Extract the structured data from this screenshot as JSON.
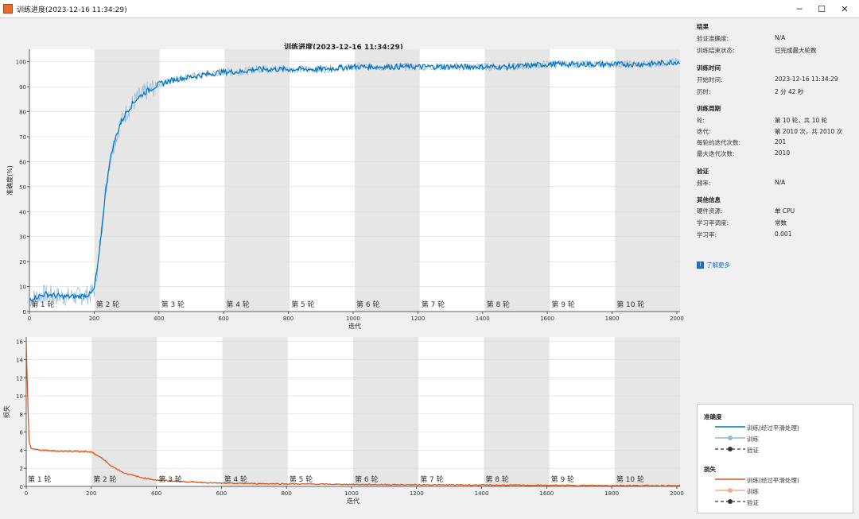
{
  "window": {
    "title": "训练进度(2023-12-16 11:34:29)",
    "minimize": "─",
    "maximize": "☐",
    "close": "✕"
  },
  "colors": {
    "accuracy_line": "#0072bd",
    "accuracy_raw": "#8db8dc",
    "loss_line": "#d95319",
    "loss_raw": "#efad8a",
    "epoch_shade": "#e6e6e6"
  },
  "chart_data": [
    {
      "type": "line",
      "title": "训练进度(2023-12-16 11:34:29)",
      "xlabel": "迭代",
      "ylabel": "准确度(%)",
      "xlim": [
        0,
        2010
      ],
      "ylim": [
        0,
        105
      ],
      "xticks": [
        0,
        200,
        400,
        600,
        800,
        1000,
        1200,
        1400,
        1600,
        1800,
        2000
      ],
      "yticks": [
        0,
        10,
        20,
        30,
        40,
        50,
        60,
        70,
        80,
        90,
        100
      ],
      "grid": true,
      "epoch_labels": [
        "第 1 轮",
        "第 2 轮",
        "第 3 轮",
        "第 4 轮",
        "第 5 轮",
        "第 6 轮",
        "第 7 轮",
        "第 8 轮",
        "第 9 轮",
        "第 10 轮"
      ],
      "epoch_boundaries": [
        0,
        201,
        402,
        603,
        804,
        1005,
        1206,
        1407,
        1608,
        1809,
        2010
      ],
      "series": [
        {
          "name": "训练(经过平滑处理)",
          "x": [
            0,
            50,
            100,
            150,
            190,
            200,
            215,
            230,
            245,
            260,
            280,
            300,
            330,
            360,
            400,
            450,
            500,
            550,
            600,
            650,
            700,
            800,
            900,
            1000,
            1100,
            1200,
            1300,
            1400,
            1500,
            1600,
            1700,
            1800,
            1900,
            2010
          ],
          "y": [
            5,
            7,
            6,
            6,
            7,
            9,
            22,
            42,
            58,
            67,
            75,
            80,
            85,
            88,
            91,
            93,
            94,
            95,
            96,
            96,
            97,
            97,
            97,
            98,
            98,
            98,
            98,
            98,
            98,
            99,
            99,
            99,
            99,
            100
          ]
        },
        {
          "name": "训练",
          "noise": 8,
          "x": [
            0,
            50,
            100,
            150,
            190,
            200,
            215,
            230,
            245,
            260,
            280,
            300,
            330,
            360,
            400,
            450,
            500,
            550,
            600,
            650,
            700,
            800,
            900,
            1000,
            1100,
            1200,
            1300,
            1400,
            1500,
            1600,
            1700,
            1800,
            1900,
            2010
          ],
          "y": [
            5,
            7,
            6,
            6,
            7,
            9,
            22,
            42,
            58,
            67,
            75,
            80,
            85,
            88,
            91,
            93,
            94,
            95,
            96,
            96,
            97,
            97,
            97,
            98,
            98,
            98,
            98,
            98,
            98,
            99,
            99,
            99,
            99,
            100
          ]
        }
      ]
    },
    {
      "type": "line",
      "xlabel": "迭代",
      "ylabel": "损失",
      "xlim": [
        0,
        2010
      ],
      "ylim": [
        0,
        16.5
      ],
      "xticks": [
        0,
        200,
        400,
        600,
        800,
        1000,
        1200,
        1400,
        1600,
        1800,
        2000
      ],
      "yticks": [
        0,
        2,
        4,
        6,
        8,
        10,
        12,
        14,
        16
      ],
      "grid": true,
      "epoch_labels": [
        "第 1 轮",
        "第 2 轮",
        "第 3 轮",
        "第 4 轮",
        "第 5 轮",
        "第 6 轮",
        "第 7 轮",
        "第 8 轮",
        "第 9 轮",
        "第 10 轮"
      ],
      "epoch_boundaries": [
        0,
        201,
        402,
        603,
        804,
        1005,
        1206,
        1407,
        1608,
        1809,
        2010
      ],
      "series": [
        {
          "name": "训练(经过平滑处理)",
          "x": [
            0,
            3,
            8,
            15,
            40,
            100,
            150,
            200,
            230,
            260,
            300,
            350,
            400,
            500,
            600,
            800,
            1000,
            1200,
            1400,
            1600,
            1800,
            2010
          ],
          "y": [
            16,
            12,
            5,
            4.2,
            4.0,
            3.9,
            3.9,
            3.8,
            3.2,
            2.3,
            1.5,
            1.0,
            0.7,
            0.5,
            0.35,
            0.28,
            0.22,
            0.18,
            0.15,
            0.12,
            0.1,
            0.08
          ]
        },
        {
          "name": "训练",
          "noise": 0.3,
          "x": [
            0,
            3,
            8,
            15,
            40,
            100,
            150,
            200,
            230,
            260,
            300,
            350,
            400,
            500,
            600,
            800,
            1000,
            1200,
            1400,
            1600,
            1800,
            2010
          ],
          "y": [
            16,
            12,
            5,
            4.2,
            4.0,
            3.9,
            3.9,
            3.8,
            3.2,
            2.3,
            1.5,
            1.0,
            0.7,
            0.5,
            0.35,
            0.28,
            0.22,
            0.18,
            0.15,
            0.12,
            0.1,
            0.08
          ]
        }
      ]
    }
  ],
  "panel": {
    "results": {
      "heading": "结果",
      "val_acc_k": "验证准确度:",
      "val_acc_v": "N/A",
      "status_k": "训练结束状态:",
      "status_v": "已完成最大轮数"
    },
    "time": {
      "heading": "训练时间",
      "start_k": "开始时间:",
      "start_v": "2023-12-16 11:34:29",
      "elapsed_k": "历时:",
      "elapsed_v": "2 分 42 秒"
    },
    "cycle": {
      "heading": "训练周期",
      "epoch_k": "轮:",
      "epoch_v": "第 10 轮，共 10 轮",
      "iter_k": "迭代:",
      "iter_v": "第 2010 次，共 2010 次",
      "per_epoch_k": "每轮的迭代次数:",
      "per_epoch_v": "201",
      "max_iter_k": "最大迭代次数:",
      "max_iter_v": "2010"
    },
    "validation": {
      "heading": "验证",
      "freq_k": "频率:",
      "freq_v": "N/A"
    },
    "other": {
      "heading": "其他信息",
      "hw_k": "硬件资源:",
      "hw_v": "单 CPU",
      "lr_sched_k": "学习率调度:",
      "lr_sched_v": "常数",
      "lr_k": "学习率:",
      "lr_v": "0.001"
    },
    "learn_more": "了解更多"
  },
  "legend": {
    "acc_heading": "准确度",
    "acc_smooth": "训练(经过平滑处理)",
    "acc_train": "训练",
    "acc_val": "验证",
    "loss_heading": "损失",
    "loss_smooth": "训练(经过平滑处理)",
    "loss_train": "训练",
    "loss_val": "验证"
  }
}
